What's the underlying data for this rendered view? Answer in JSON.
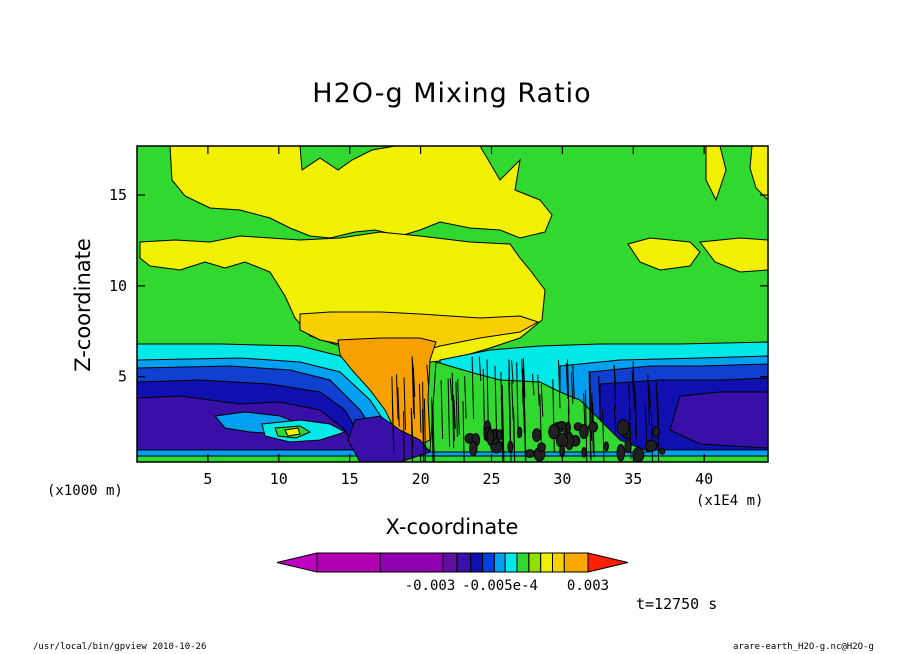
{
  "chart_data": {
    "type": "heatmap",
    "title": "H2O-g Mixing Ratio",
    "xlabel": "X-coordinate",
    "ylabel": "Z-coordinate",
    "x_unit_left": "(x1000 m)",
    "x_unit_right": "(x1E4 m)",
    "xlim": [
      0,
      44.5
    ],
    "ylim": [
      0.3,
      17.7
    ],
    "x_ticks": [
      5,
      10,
      15,
      20,
      25,
      30,
      35,
      40
    ],
    "y_ticks": [
      5,
      10,
      15
    ],
    "colorbar": {
      "colors": [
        "#c000c0",
        "#b000b0",
        "#9000b0",
        "#6010a0",
        "#3810a8",
        "#1010b0",
        "#0040e0",
        "#00a0f0",
        "#00e8e8",
        "#30d830",
        "#90e000",
        "#f0f000",
        "#f8d000",
        "#f8a800",
        "#f88000",
        "#ff2000"
      ],
      "tick_labels": [
        "-0.003",
        "-0.005e-4",
        "0.003"
      ]
    },
    "time_label": "t=12750 s"
  },
  "footer": {
    "left": "/usr/local/bin/gpview  2010-10-26",
    "right": "arare-earth_H2O-g.nc@H2O-g"
  }
}
